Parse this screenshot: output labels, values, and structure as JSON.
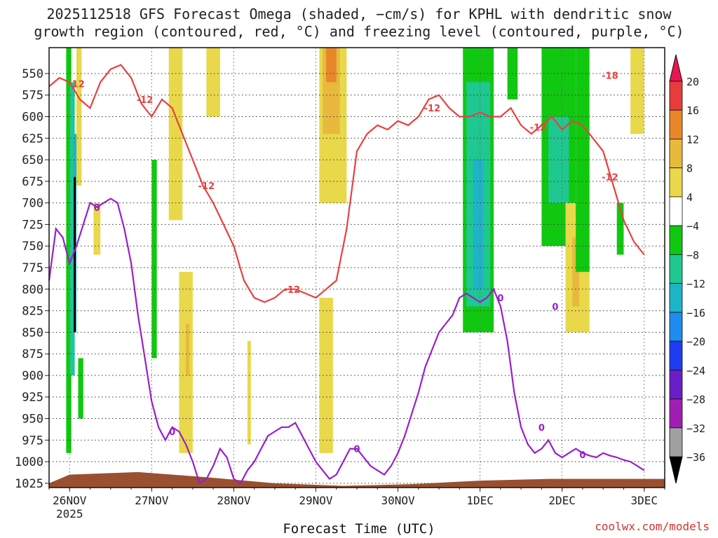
{
  "title_lines": [
    "2025112518 GFS Forecast Omega (shaded, −cm/s) for KPHL with dendritic snow",
    "growth region (contoured, red, °C) and freezing level (contoured, purple, °C)"
  ],
  "credit": "coolwx.com/models",
  "chart_data": {
    "type": "heatmap",
    "title": "2025112518 GFS Forecast Omega (shaded, −cm/s) for KPHL with dendritic snow growth region (contoured, red, °C) and freezing level (contoured, purple, °C)",
    "xlabel": "Forecast Time (UTC)",
    "ylabel": "",
    "x_ticks": [
      "26NOV",
      "27NOV",
      "28NOV",
      "29NOV",
      "30NOV",
      "1DEC",
      "2DEC",
      "3DEC"
    ],
    "x_tick_sub": "2025",
    "x_range_hours": [
      -6,
      174
    ],
    "y_ticks": [
      550,
      575,
      600,
      625,
      650,
      675,
      700,
      725,
      750,
      775,
      800,
      825,
      850,
      875,
      900,
      925,
      950,
      975,
      1000,
      1025
    ],
    "y_range": [
      520,
      1030
    ],
    "colorbar": {
      "labels": [
        "20",
        "16",
        "12",
        "8",
        "4",
        "−4",
        "−8",
        "−12",
        "−16",
        "−20",
        "−24",
        "−28",
        "−32",
        "−36"
      ],
      "colors": [
        "#e8174f",
        "#e83c3c",
        "#e8872a",
        "#e8b93c",
        "#e8d84a",
        "#ffffff",
        "#10c810",
        "#1ec890",
        "#1eb4c8",
        "#1e8cf0",
        "#1e3cf0",
        "#6a1ec8",
        "#a01eb4",
        "#a0a0a0",
        "#000000"
      ]
    },
    "shaded_regions": [
      {
        "class": "-8",
        "hours": [
          -1,
          0.5
        ],
        "p_top": 520,
        "p_bot": 990
      },
      {
        "class": "-12",
        "hours": [
          0,
          1.5
        ],
        "p_top": 560,
        "p_bot": 900
      },
      {
        "class": "-16",
        "hours": [
          1,
          2
        ],
        "p_top": 620,
        "p_bot": 850
      },
      {
        "class": "-36",
        "hours": [
          1.2,
          1.8
        ],
        "p_top": 670,
        "p_bot": 850
      },
      {
        "class": "-8",
        "hours": [
          2.5,
          4
        ],
        "p_top": 880,
        "p_bot": 950
      },
      {
        "class": "4",
        "hours": [
          2,
          3.5
        ],
        "p_top": 520,
        "p_bot": 680
      },
      {
        "class": "4",
        "hours": [
          7,
          9
        ],
        "p_top": 700,
        "p_bot": 760
      },
      {
        "class": "-8",
        "hours": [
          24,
          25.5
        ],
        "p_top": 650,
        "p_bot": 880
      },
      {
        "class": "4",
        "hours": [
          29,
          33
        ],
        "p_top": 520,
        "p_bot": 720
      },
      {
        "class": "4",
        "hours": [
          32,
          36
        ],
        "p_top": 780,
        "p_bot": 990
      },
      {
        "class": "8",
        "hours": [
          34,
          35
        ],
        "p_top": 840,
        "p_bot": 900
      },
      {
        "class": "4",
        "hours": [
          40,
          44
        ],
        "p_top": 520,
        "p_bot": 600
      },
      {
        "class": "4",
        "hours": [
          52,
          53
        ],
        "p_top": 860,
        "p_bot": 980
      },
      {
        "class": "4",
        "hours": [
          73,
          77
        ],
        "p_top": 810,
        "p_bot": 990
      },
      {
        "class": "4",
        "hours": [
          73,
          81
        ],
        "p_top": 520,
        "p_bot": 700
      },
      {
        "class": "8",
        "hours": [
          74,
          79
        ],
        "p_top": 520,
        "p_bot": 620
      },
      {
        "class": "12",
        "hours": [
          75,
          78
        ],
        "p_top": 520,
        "p_bot": 560
      },
      {
        "class": "-8",
        "hours": [
          115,
          124
        ],
        "p_top": 520,
        "p_bot": 850
      },
      {
        "class": "-12",
        "hours": [
          116,
          123
        ],
        "p_top": 560,
        "p_bot": 820
      },
      {
        "class": "-16",
        "hours": [
          118,
          121
        ],
        "p_top": 650,
        "p_bot": 800
      },
      {
        "class": "-8",
        "hours": [
          128,
          131
        ],
        "p_top": 520,
        "p_bot": 580
      },
      {
        "class": "-8",
        "hours": [
          138,
          148
        ],
        "p_top": 520,
        "p_bot": 750
      },
      {
        "class": "-12",
        "hours": [
          140,
          146
        ],
        "p_top": 600,
        "p_bot": 700
      },
      {
        "class": "4",
        "hours": [
          145,
          152
        ],
        "p_top": 700,
        "p_bot": 850
      },
      {
        "class": "8",
        "hours": [
          147,
          149
        ],
        "p_top": 740,
        "p_bot": 820
      },
      {
        "class": "-8",
        "hours": [
          148,
          152
        ],
        "p_top": 520,
        "p_bot": 780
      },
      {
        "class": "-8",
        "hours": [
          160,
          162
        ],
        "p_top": 700,
        "p_bot": 760
      },
      {
        "class": "4",
        "hours": [
          164,
          168
        ],
        "p_top": 520,
        "p_bot": 620
      }
    ],
    "series": [
      {
        "name": "-12",
        "color": "#e84040",
        "points": [
          [
            -6,
            565
          ],
          [
            -3,
            555
          ],
          [
            0,
            560
          ],
          [
            3,
            580
          ],
          [
            6,
            590
          ],
          [
            9,
            560
          ],
          [
            12,
            545
          ],
          [
            15,
            540
          ],
          [
            18,
            555
          ],
          [
            21,
            585
          ],
          [
            24,
            600
          ],
          [
            27,
            580
          ],
          [
            30,
            590
          ],
          [
            33,
            620
          ],
          [
            36,
            650
          ],
          [
            39,
            680
          ],
          [
            42,
            700
          ],
          [
            45,
            725
          ],
          [
            48,
            750
          ],
          [
            51,
            790
          ],
          [
            54,
            810
          ],
          [
            57,
            815
          ],
          [
            60,
            810
          ],
          [
            63,
            800
          ],
          [
            66,
            800
          ],
          [
            69,
            805
          ],
          [
            72,
            810
          ],
          [
            75,
            800
          ],
          [
            78,
            790
          ],
          [
            81,
            730
          ],
          [
            84,
            640
          ],
          [
            87,
            620
          ],
          [
            90,
            610
          ],
          [
            93,
            615
          ],
          [
            96,
            605
          ],
          [
            99,
            610
          ],
          [
            102,
            600
          ],
          [
            105,
            580
          ],
          [
            108,
            575
          ],
          [
            111,
            590
          ],
          [
            114,
            600
          ],
          [
            117,
            600
          ],
          [
            120,
            595
          ],
          [
            123,
            600
          ],
          [
            126,
            600
          ],
          [
            129,
            590
          ],
          [
            132,
            610
          ],
          [
            135,
            620
          ],
          [
            138,
            610
          ],
          [
            141,
            600
          ],
          [
            144,
            615
          ],
          [
            147,
            605
          ],
          [
            150,
            610
          ],
          [
            153,
            625
          ],
          [
            156,
            640
          ],
          [
            159,
            680
          ],
          [
            162,
            720
          ],
          [
            165,
            745
          ],
          [
            168,
            760
          ]
        ]
      },
      {
        "name": "0",
        "color": "#9a1ecc",
        "points": [
          [
            -6,
            790
          ],
          [
            -4,
            730
          ],
          [
            -2,
            740
          ],
          [
            0,
            770
          ],
          [
            2,
            750
          ],
          [
            4,
            725
          ],
          [
            6,
            700
          ],
          [
            8,
            705
          ],
          [
            10,
            700
          ],
          [
            12,
            695
          ],
          [
            14,
            700
          ],
          [
            16,
            730
          ],
          [
            18,
            770
          ],
          [
            20,
            830
          ],
          [
            22,
            880
          ],
          [
            24,
            930
          ],
          [
            26,
            960
          ],
          [
            28,
            975
          ],
          [
            30,
            960
          ],
          [
            32,
            965
          ],
          [
            34,
            980
          ],
          [
            36,
            1000
          ],
          [
            38,
            1025
          ],
          [
            40,
            1020
          ],
          [
            42,
            1005
          ],
          [
            44,
            985
          ],
          [
            46,
            995
          ],
          [
            48,
            1020
          ],
          [
            50,
            1025
          ],
          [
            52,
            1010
          ],
          [
            54,
            1000
          ],
          [
            56,
            985
          ],
          [
            58,
            970
          ],
          [
            60,
            965
          ],
          [
            62,
            960
          ],
          [
            64,
            960
          ],
          [
            66,
            955
          ],
          [
            68,
            970
          ],
          [
            70,
            985
          ],
          [
            72,
            1000
          ],
          [
            74,
            1010
          ],
          [
            76,
            1020
          ],
          [
            78,
            1015
          ],
          [
            80,
            1000
          ],
          [
            82,
            985
          ],
          [
            84,
            985
          ],
          [
            86,
            995
          ],
          [
            88,
            1005
          ],
          [
            90,
            1010
          ],
          [
            92,
            1015
          ],
          [
            94,
            1005
          ],
          [
            96,
            990
          ],
          [
            98,
            970
          ],
          [
            100,
            945
          ],
          [
            102,
            920
          ],
          [
            104,
            890
          ],
          [
            106,
            870
          ],
          [
            108,
            850
          ],
          [
            110,
            840
          ],
          [
            112,
            830
          ],
          [
            114,
            810
          ],
          [
            116,
            805
          ],
          [
            118,
            810
          ],
          [
            120,
            815
          ],
          [
            122,
            810
          ],
          [
            124,
            800
          ],
          [
            126,
            820
          ],
          [
            128,
            860
          ],
          [
            130,
            920
          ],
          [
            132,
            960
          ],
          [
            134,
            980
          ],
          [
            136,
            990
          ],
          [
            138,
            985
          ],
          [
            140,
            975
          ],
          [
            142,
            990
          ],
          [
            144,
            995
          ],
          [
            146,
            990
          ],
          [
            148,
            985
          ],
          [
            150,
            990
          ],
          [
            152,
            993
          ],
          [
            154,
            995
          ],
          [
            156,
            990
          ],
          [
            158,
            993
          ],
          [
            160,
            995
          ],
          [
            162,
            998
          ],
          [
            164,
            1000
          ],
          [
            166,
            1005
          ],
          [
            168,
            1010
          ]
        ]
      }
    ],
    "contour_labels": [
      {
        "text": "-12",
        "hour": 2,
        "p": 562,
        "color": "#e84040"
      },
      {
        "text": "-12",
        "hour": 22,
        "p": 580,
        "color": "#e84040"
      },
      {
        "text": "-12",
        "hour": 40,
        "p": 680,
        "color": "#e84040"
      },
      {
        "text": "-12",
        "hour": 65,
        "p": 800,
        "color": "#e84040"
      },
      {
        "text": "-12",
        "hour": 106,
        "p": 590,
        "color": "#e84040"
      },
      {
        "text": "-12",
        "hour": 137,
        "p": 612,
        "color": "#e84040"
      },
      {
        "text": "-18",
        "hour": 158,
        "p": 552,
        "color": "#e84040"
      },
      {
        "text": "-12",
        "hour": 158,
        "p": 670,
        "color": "#e84040"
      },
      {
        "text": "0",
        "hour": 8,
        "p": 705,
        "color": "#9a1ecc"
      },
      {
        "text": "0",
        "hour": 30,
        "p": 965,
        "color": "#9a1ecc"
      },
      {
        "text": "0",
        "hour": 84,
        "p": 985,
        "color": "#9a1ecc"
      },
      {
        "text": "0",
        "hour": 126,
        "p": 810,
        "color": "#9a1ecc"
      },
      {
        "text": "0",
        "hour": 142,
        "p": 820,
        "color": "#9a1ecc"
      },
      {
        "text": "0",
        "hour": 138,
        "p": 960,
        "color": "#9a1ecc"
      },
      {
        "text": "0",
        "hour": 150,
        "p": 992,
        "color": "#9a1ecc"
      }
    ],
    "terrain_color": "#9a5030"
  }
}
